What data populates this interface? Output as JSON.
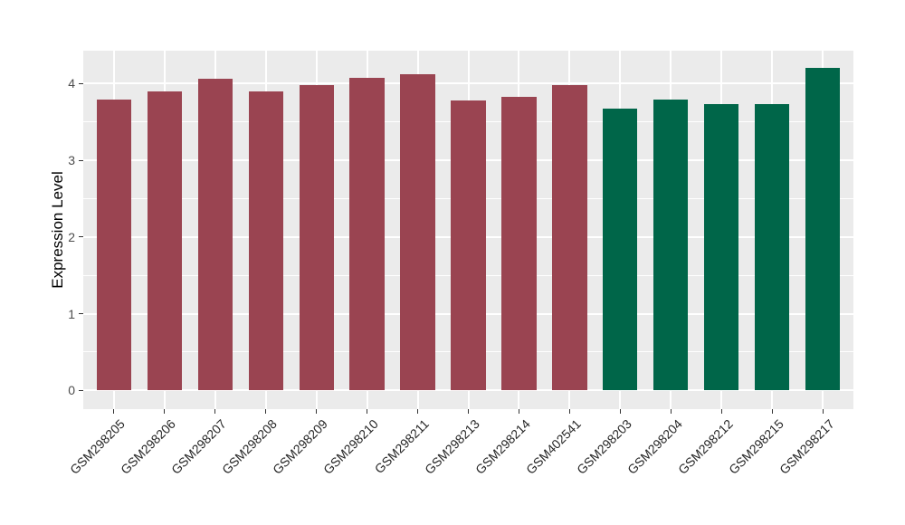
{
  "chart_data": {
    "type": "bar",
    "title": "",
    "xlabel": "",
    "ylabel": "Expression Level",
    "categories": [
      "GSM298205",
      "GSM298206",
      "GSM298207",
      "GSM298208",
      "GSM298209",
      "GSM298210",
      "GSM298211",
      "GSM298213",
      "GSM298214",
      "GSM402541",
      "GSM298203",
      "GSM298204",
      "GSM298212",
      "GSM298215",
      "GSM298217"
    ],
    "values": [
      3.79,
      3.9,
      4.07,
      3.9,
      3.98,
      4.08,
      4.12,
      3.78,
      3.83,
      3.98,
      3.67,
      3.79,
      3.73,
      3.73,
      4.2
    ],
    "groups": [
      "red",
      "red",
      "red",
      "red",
      "red",
      "red",
      "red",
      "red",
      "red",
      "red",
      "green",
      "green",
      "green",
      "green",
      "green"
    ],
    "group_colors": {
      "red": "#9A4451",
      "green": "#006649"
    },
    "yticks": [
      0,
      1,
      2,
      3,
      4
    ],
    "minor_yticks": [
      0.5,
      1.5,
      2.5,
      3.5
    ],
    "ylim": [
      0,
      4.43
    ],
    "x_label_angle": -45,
    "legend_position": "none",
    "grid": "on",
    "panel_background": "#EBEBEB",
    "grid_color": "#FFFFFF",
    "tick_color": "#333333",
    "axis_text_color": "#4d4d4d"
  }
}
